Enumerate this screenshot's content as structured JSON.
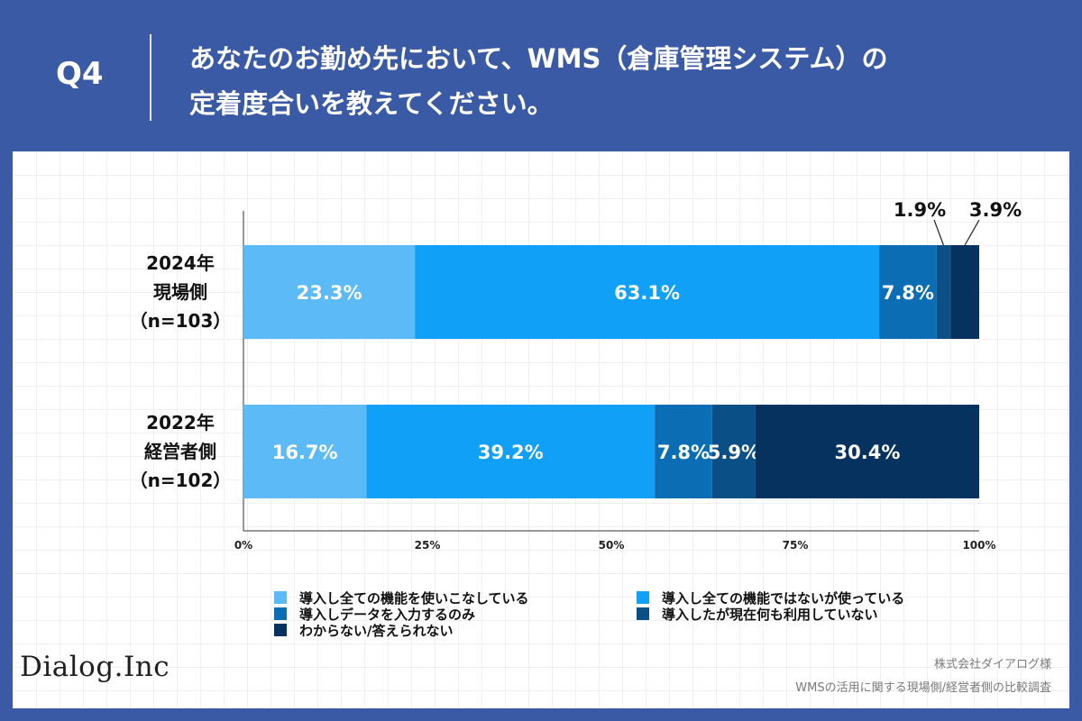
{
  "header": {
    "q_label": "Q4",
    "question_line1": "あなたのお勤め先において、WMS（倉庫管理システム）の",
    "question_line2": "定着度合いを教えてください。"
  },
  "footer": {
    "logo_text": "Dialog.Inc",
    "credit_line1": "株式会社ダイアログ様",
    "credit_line2": "WMSの活用に関する現場側/経営者側の比較調査"
  },
  "chart_data": {
    "type": "bar",
    "orientation": "horizontal",
    "stacked": true,
    "title": "",
    "categories": [
      [
        "2024年",
        "現場側",
        "（n=103）"
      ],
      [
        "2022年",
        "経営者側",
        "（n=102）"
      ]
    ],
    "x_ticks": [
      "0%",
      "25%",
      "50%",
      "75%",
      "100%"
    ],
    "xlim": [
      0,
      100
    ],
    "series": [
      {
        "name": "導入し全ての機能を使いこなしている",
        "color": "#5cbaf7",
        "values": [
          23.3,
          16.7
        ],
        "labels": [
          "23.3%",
          "16.7%"
        ]
      },
      {
        "name": "導入し全ての機能ではないが使っている",
        "color": "#10a0f7",
        "values": [
          63.1,
          39.2
        ],
        "labels": [
          "63.1%",
          "39.2%"
        ]
      },
      {
        "name": "導入しデータを入力するのみ",
        "color": "#0b6eb4",
        "values": [
          7.8,
          7.8
        ],
        "labels": [
          "7.8%",
          "7.8%"
        ]
      },
      {
        "name": "導入したが現在何も利用していない",
        "color": "#0a4f86",
        "values": [
          1.9,
          5.9
        ],
        "labels": [
          "1.9%",
          "5.9%"
        ]
      },
      {
        "name": "わからない/答えられない",
        "color": "#06325f",
        "values": [
          3.9,
          30.4
        ],
        "labels": [
          "3.9%",
          "30.4%"
        ]
      }
    ],
    "legend_position": "bottom"
  }
}
